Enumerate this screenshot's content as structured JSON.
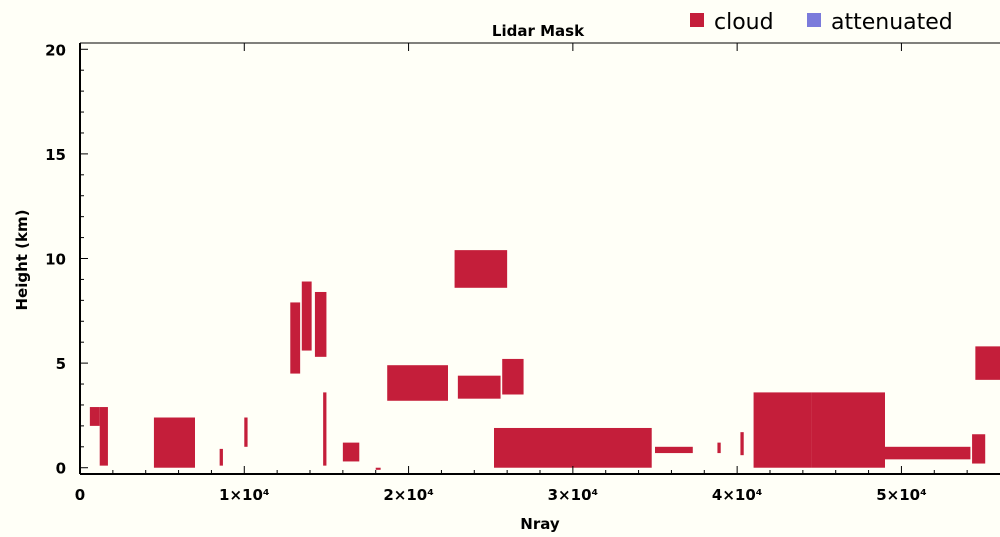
{
  "chart_data": {
    "type": "mask",
    "title": "Lidar Mask",
    "xlabel": "Nray",
    "ylabel": "Height (km)",
    "xlim": [
      0,
      56000
    ],
    "ylim": [
      -0.3,
      20.3
    ],
    "x_ticks": [
      0,
      10000,
      20000,
      30000,
      40000,
      50000
    ],
    "x_tick_labels": [
      "0",
      "1×10⁴",
      "2×10⁴",
      "3×10⁴",
      "4×10⁴",
      "5×10⁴"
    ],
    "y_ticks": [
      0,
      5,
      10,
      15,
      20
    ],
    "y_tick_labels": [
      "0",
      "5",
      "10",
      "15",
      "20"
    ],
    "legend": [
      {
        "label": "cloud",
        "color": "#c41e3a"
      },
      {
        "label": "attenuated",
        "color": "#7b7bdb"
      }
    ],
    "legend_position": "top-right",
    "series": [
      {
        "name": "cloud",
        "color": "#c41e3a",
        "regions": [
          {
            "x0": 600,
            "x1": 1200,
            "y0": 2.0,
            "y1": 2.9
          },
          {
            "x0": 1200,
            "x1": 1700,
            "y0": 0.1,
            "y1": 2.9
          },
          {
            "x0": 4500,
            "x1": 7000,
            "y0": 0.0,
            "y1": 2.4
          },
          {
            "x0": 8500,
            "x1": 8700,
            "y0": 0.1,
            "y1": 0.9
          },
          {
            "x0": 10000,
            "x1": 10200,
            "y0": 1.0,
            "y1": 2.4
          },
          {
            "x0": 12800,
            "x1": 13400,
            "y0": 4.5,
            "y1": 7.9
          },
          {
            "x0": 13500,
            "x1": 14100,
            "y0": 5.6,
            "y1": 8.9
          },
          {
            "x0": 14300,
            "x1": 15000,
            "y0": 5.3,
            "y1": 8.4
          },
          {
            "x0": 14800,
            "x1": 15000,
            "y0": 0.1,
            "y1": 3.6
          },
          {
            "x0": 16000,
            "x1": 17000,
            "y0": 0.3,
            "y1": 1.2
          },
          {
            "x0": 18000,
            "x1": 18300,
            "y0": -0.1,
            "y1": 0.0
          },
          {
            "x0": 18700,
            "x1": 22400,
            "y0": 3.2,
            "y1": 4.9
          },
          {
            "x0": 22800,
            "x1": 26000,
            "y0": 8.6,
            "y1": 10.4
          },
          {
            "x0": 23000,
            "x1": 25600,
            "y0": 3.3,
            "y1": 4.4
          },
          {
            "x0": 25700,
            "x1": 27000,
            "y0": 3.5,
            "y1": 5.2
          },
          {
            "x0": 25200,
            "x1": 34800,
            "y0": 0.0,
            "y1": 1.9
          },
          {
            "x0": 35000,
            "x1": 37300,
            "y0": 0.7,
            "y1": 1.0
          },
          {
            "x0": 38800,
            "x1": 39000,
            "y0": 0.7,
            "y1": 1.2
          },
          {
            "x0": 40200,
            "x1": 40400,
            "y0": 0.6,
            "y1": 1.7
          },
          {
            "x0": 41000,
            "x1": 44500,
            "y0": 0.0,
            "y1": 3.6
          },
          {
            "x0": 44500,
            "x1": 49000,
            "y0": 0.0,
            "y1": 3.6
          },
          {
            "x0": 49000,
            "x1": 54200,
            "y0": 0.4,
            "y1": 1.0
          },
          {
            "x0": 54300,
            "x1": 55100,
            "y0": 0.2,
            "y1": 1.6
          },
          {
            "x0": 54500,
            "x1": 56000,
            "y0": 4.2,
            "y1": 5.8
          }
        ]
      },
      {
        "name": "attenuated",
        "color": "#7b7bdb",
        "regions": []
      }
    ]
  }
}
